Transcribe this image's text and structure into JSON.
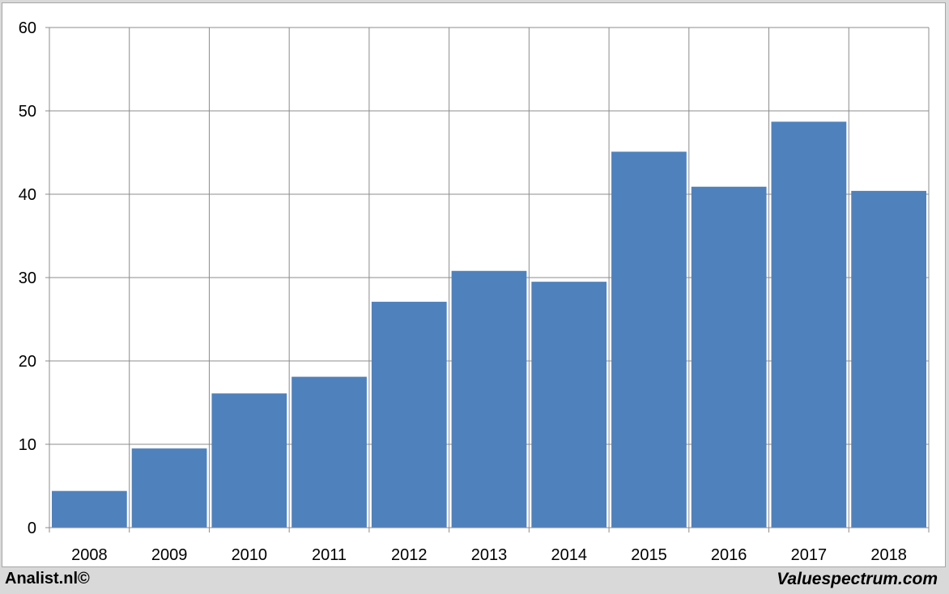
{
  "chart_data": {
    "type": "bar",
    "categories": [
      "2008",
      "2009",
      "2010",
      "2011",
      "2012",
      "2013",
      "2014",
      "2015",
      "2016",
      "2017",
      "2018"
    ],
    "values": [
      4.4,
      9.5,
      16.1,
      18.1,
      27.1,
      30.8,
      29.5,
      45.1,
      40.9,
      48.7,
      40.4
    ],
    "title": "",
    "xlabel": "",
    "ylabel": "",
    "ylim": [
      0,
      60
    ],
    "yticks": [
      0,
      10,
      20,
      30,
      40,
      50,
      60
    ],
    "grid": true,
    "bar_color": "#4f81bd",
    "grid_color": "#8c8c8c"
  },
  "footer": {
    "left": "Analist.nl©",
    "right": "Valuespectrum.com"
  }
}
